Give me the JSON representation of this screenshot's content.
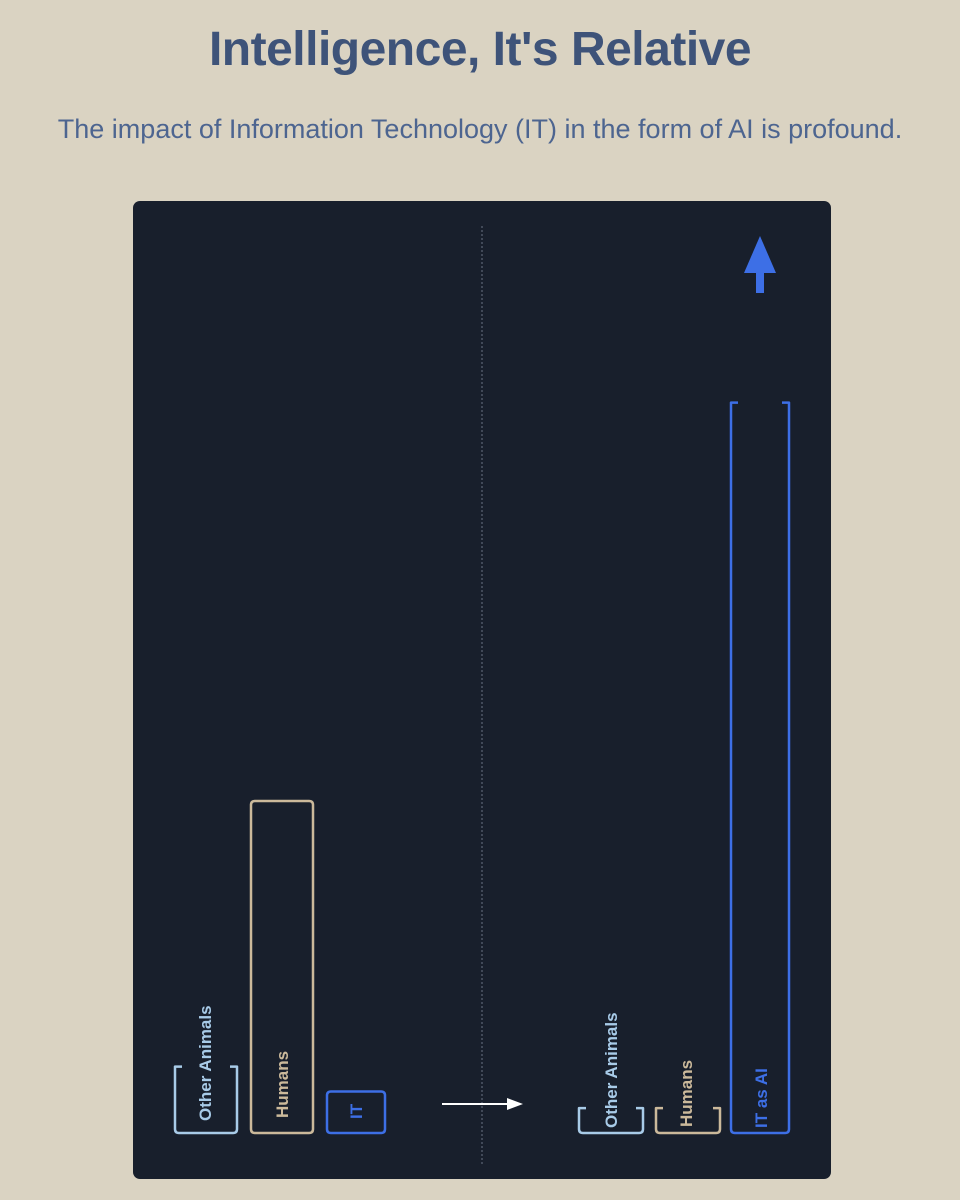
{
  "header": {
    "title": "Intelligence, It's Relative",
    "subtitle": "The impact of Information Technology (IT) in the form of AI is profound."
  },
  "colors": {
    "background": "#dad3c2",
    "panel": "#181f2c",
    "title": "#3e5379",
    "other_animals": "#a8cbe8",
    "humans": "#cbb99b",
    "it": "#3d6fe6",
    "arrow": "#ffffff",
    "divider": "#6a7385"
  },
  "diagram": {
    "before": {
      "bars": [
        {
          "label": "Other Animals",
          "level": 0.08,
          "open_top": true
        },
        {
          "label": "Humans",
          "level": 0.4,
          "open_top": false
        },
        {
          "label": "IT",
          "level": 0.05,
          "open_top": false
        }
      ]
    },
    "transition": {
      "icon": "right-arrow-icon"
    },
    "after": {
      "bars": [
        {
          "label": "Other Animals",
          "level": 0.03,
          "open_top": true
        },
        {
          "label": "Humans",
          "level": 0.03,
          "open_top": true
        },
        {
          "label": "IT as AI",
          "level": 0.88,
          "open_top": true,
          "icon": "up-arrow-icon"
        }
      ]
    }
  }
}
